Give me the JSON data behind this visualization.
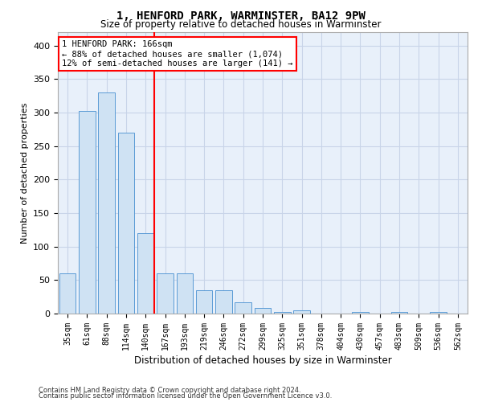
{
  "title": "1, HENFORD PARK, WARMINSTER, BA12 9PW",
  "subtitle": "Size of property relative to detached houses in Warminster",
  "xlabel": "Distribution of detached houses by size in Warminster",
  "ylabel": "Number of detached properties",
  "categories": [
    "35sqm",
    "61sqm",
    "88sqm",
    "114sqm",
    "140sqm",
    "167sqm",
    "193sqm",
    "219sqm",
    "246sqm",
    "272sqm",
    "299sqm",
    "325sqm",
    "351sqm",
    "378sqm",
    "404sqm",
    "430sqm",
    "457sqm",
    "483sqm",
    "509sqm",
    "536sqm",
    "562sqm"
  ],
  "values": [
    60,
    303,
    330,
    270,
    120,
    60,
    60,
    35,
    35,
    17,
    8,
    3,
    5,
    0,
    0,
    3,
    0,
    3,
    0,
    3,
    0
  ],
  "bar_color": "#cfe2f3",
  "bar_edge_color": "#5b9bd5",
  "grid_color": "#c8d4e8",
  "background_color": "#e8f0fa",
  "red_line_index": 4,
  "annotation_text": "1 HENFORD PARK: 166sqm\n← 88% of detached houses are smaller (1,074)\n12% of semi-detached houses are larger (141) →",
  "annotation_box_color": "white",
  "annotation_box_edge_color": "red",
  "ylim": [
    0,
    420
  ],
  "yticks": [
    0,
    50,
    100,
    150,
    200,
    250,
    300,
    350,
    400
  ],
  "footer_line1": "Contains HM Land Registry data © Crown copyright and database right 2024.",
  "footer_line2": "Contains public sector information licensed under the Open Government Licence v3.0."
}
